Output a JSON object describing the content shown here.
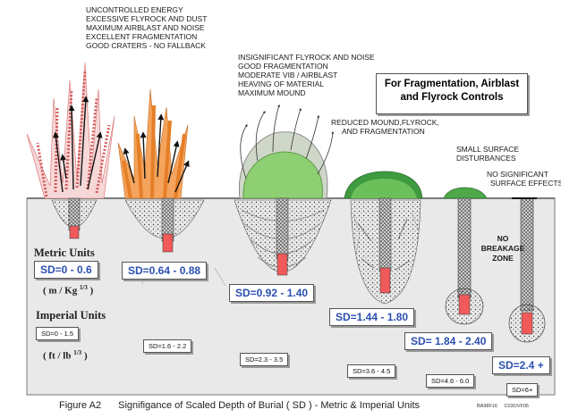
{
  "title_box": {
    "line1": "For Fragmentation, Airblast",
    "line2": "and Flyrock Controls"
  },
  "effects": {
    "e1": [
      "UNCONTROLLED ENERGY",
      "EXCESSIVE FLYROCK AND DUST",
      "MAXIMUM AIRBLAST AND NOISE",
      "EXCELLENT FRAGMENTATION",
      "GOOD CRATERS - NO FALLBACK"
    ],
    "e3": [
      "INSIGNIFICANT FLYROCK AND NOISE",
      "GOOD FRAGMENTATION",
      "MODERATE VIB / AIRBLAST",
      "HEAVING OF MATERIAL",
      "MAXIMUM MOUND"
    ],
    "e4": [
      "REDUCED MOUND,FLYROCK,",
      "AND FRAGMENTATION"
    ],
    "e5": [
      "SMALL SURFACE",
      "DISTURBANCES"
    ],
    "e6": [
      "NO SIGNIFICANT",
      "SURFACE EFFECTS"
    ]
  },
  "no_breakage": [
    "NO",
    "BREAKAGE",
    "ZONE"
  ],
  "units": {
    "metric_label": "Metric Units",
    "metric_unit_main": "( m / Kg",
    "metric_unit_exp": "1/3",
    "metric_unit_close": ")",
    "imperial_label": "Imperial Units",
    "imperial_unit_main": "( ft / lb",
    "imperial_unit_exp": "1/3",
    "imperial_unit_close": ")"
  },
  "metric_sd": [
    "SD=0 - 0.6",
    "SD=0.64 - 0.88",
    "SD=0.92 - 1.40",
    "SD=1.44 - 1.80",
    "SD= 1.84 - 2.40",
    "SD=2.4 +"
  ],
  "imperial_sd": [
    "SD=0 - 1.5",
    "SD=1.6 - 2.2",
    "SD=2.3 - 3.5",
    "SD=3.6 - 4.5",
    "SD=4.6 - 6.0",
    "SD=6+"
  ],
  "caption": {
    "figure": "Figure A2",
    "text": "Signifigance of Scaled Depth of Burial  ( SD ) - Metric & Imperial Units",
    "code1": "BA98F16",
    "code2": "C03OVF05"
  },
  "colors": {
    "ground": "#e9e9e9",
    "charge": "#f05a5a",
    "orange_flame": "#f4a45c",
    "red_flame": "#d86a6a",
    "mound": "#8fcf73",
    "mound_dark": "#3f9a40",
    "metric_text": "#2a4fb0"
  }
}
